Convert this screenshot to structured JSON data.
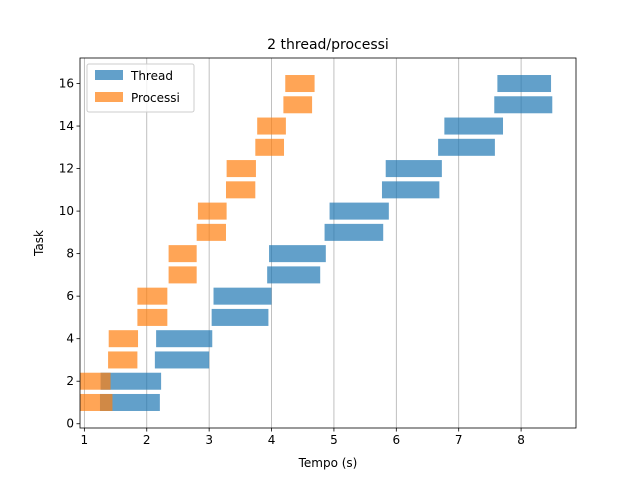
{
  "chart_data": {
    "type": "gantt",
    "title": "2 thread/processi",
    "xlabel": "Tempo (s)",
    "ylabel": "Task",
    "xlim": [
      0.93,
      8.88
    ],
    "ylim": [
      -0.2,
      17.2
    ],
    "x_ticks": [
      1,
      2,
      3,
      4,
      5,
      6,
      7,
      8
    ],
    "y_ticks": [
      0,
      2,
      4,
      6,
      8,
      10,
      12,
      14,
      16
    ],
    "x_grid": true,
    "y_grid": false,
    "legend_position": "top-left",
    "bar_height": 0.8,
    "alpha": 0.7,
    "series": [
      {
        "name": "Thread",
        "color": "#1f77b4",
        "bars": [
          {
            "task": 1,
            "start": 1.25,
            "end": 2.21
          },
          {
            "task": 2,
            "start": 1.26,
            "end": 2.23
          },
          {
            "task": 3,
            "start": 2.13,
            "end": 3.0
          },
          {
            "task": 4,
            "start": 2.15,
            "end": 3.05
          },
          {
            "task": 5,
            "start": 3.04,
            "end": 3.95
          },
          {
            "task": 6,
            "start": 3.07,
            "end": 4.0
          },
          {
            "task": 7,
            "start": 3.93,
            "end": 4.78
          },
          {
            "task": 8,
            "start": 3.96,
            "end": 4.87
          },
          {
            "task": 9,
            "start": 4.85,
            "end": 5.79
          },
          {
            "task": 10,
            "start": 4.93,
            "end": 5.88
          },
          {
            "task": 11,
            "start": 5.77,
            "end": 6.69
          },
          {
            "task": 12,
            "start": 5.83,
            "end": 6.73
          },
          {
            "task": 13,
            "start": 6.67,
            "end": 7.58
          },
          {
            "task": 14,
            "start": 6.77,
            "end": 7.71
          },
          {
            "task": 15,
            "start": 7.57,
            "end": 8.5
          },
          {
            "task": 16,
            "start": 7.62,
            "end": 8.48
          }
        ]
      },
      {
        "name": "Processi",
        "color": "#ff7f0e",
        "bars": [
          {
            "task": 1,
            "start": 0.93,
            "end": 1.45
          },
          {
            "task": 2,
            "start": 0.93,
            "end": 1.42
          },
          {
            "task": 3,
            "start": 1.38,
            "end": 1.85
          },
          {
            "task": 4,
            "start": 1.39,
            "end": 1.86
          },
          {
            "task": 5,
            "start": 1.85,
            "end": 2.33
          },
          {
            "task": 6,
            "start": 1.85,
            "end": 2.33
          },
          {
            "task": 7,
            "start": 2.35,
            "end": 2.8
          },
          {
            "task": 8,
            "start": 2.35,
            "end": 2.8
          },
          {
            "task": 9,
            "start": 2.8,
            "end": 3.27
          },
          {
            "task": 10,
            "start": 2.82,
            "end": 3.28
          },
          {
            "task": 11,
            "start": 3.27,
            "end": 3.74
          },
          {
            "task": 12,
            "start": 3.28,
            "end": 3.75
          },
          {
            "task": 13,
            "start": 3.74,
            "end": 4.2
          },
          {
            "task": 14,
            "start": 3.77,
            "end": 4.23
          },
          {
            "task": 15,
            "start": 4.19,
            "end": 4.65
          },
          {
            "task": 16,
            "start": 4.22,
            "end": 4.69
          }
        ]
      }
    ]
  }
}
